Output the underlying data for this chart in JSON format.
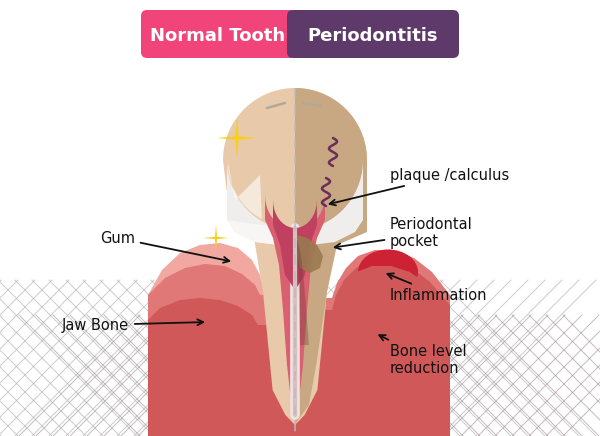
{
  "bg_color": "#ffffff",
  "title_left": "Normal Tooth",
  "title_right": "Periodontitis",
  "title_left_bg": "#f0447a",
  "title_right_bg": "#5e3a6b",
  "title_text_color": "#ffffff",
  "labels": {
    "gum": "Gum",
    "jaw_bone": "Jaw Bone",
    "plaque": "plaque /calculus",
    "pocket": "Periodontal\npocket",
    "inflammation": "Inflammation",
    "bone_reduction": "Bone level\nreduction"
  },
  "colors": {
    "enamel_white": "#f0eeec",
    "enamel_white2": "#e8e4e0",
    "dentin_cream": "#e8c9aa",
    "dentin_right": "#c8a882",
    "gum_light": "#f0a8a0",
    "gum_mid": "#e07878",
    "gum_dark": "#d05858",
    "gum_right_dark": "#c04848",
    "inflamed_red": "#cc2233",
    "pulp_pink": "#d96070",
    "pulp_dark": "#c04060",
    "root_canal_white": "#f5e8e8",
    "bone_grey": "#cccccc",
    "bone_grey2": "#bbbbbb",
    "bone_right_grey": "#b8a8a8",
    "bone_right_pink": "#c09090",
    "periodontal_dark": "#8a6050",
    "sparkle": "#f5d020",
    "bacteria": "#6b2d5a",
    "line_color": "#111111",
    "divider": "#aaaaaa",
    "plaque_tan": "#9a7a50"
  }
}
